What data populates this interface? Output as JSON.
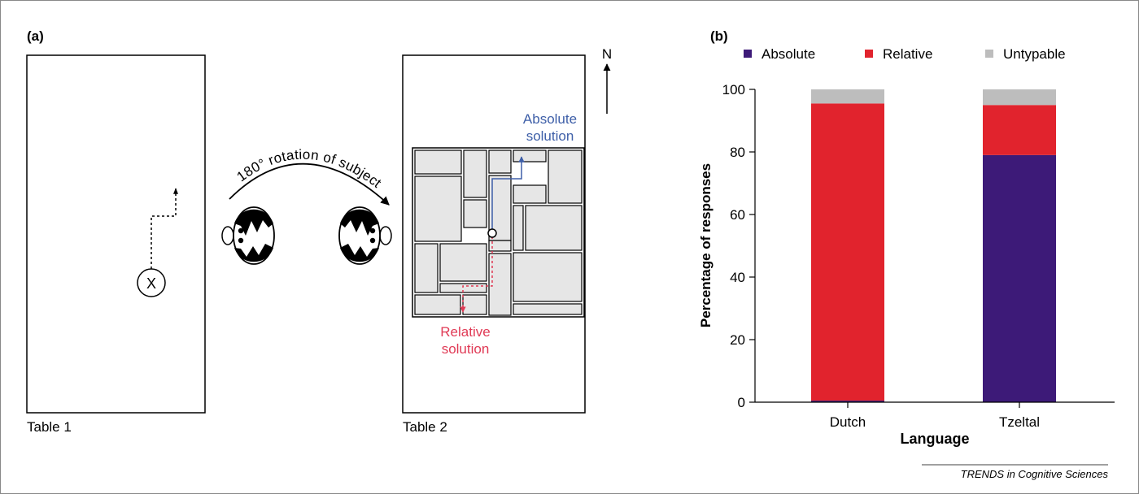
{
  "panel_a": {
    "label": "(a)",
    "table1_label": "Table 1",
    "table2_label": "Table 2",
    "rotation_text": "180° rotation of subject",
    "north": "N",
    "absolute_line1": "Absolute",
    "absolute_line2": "solution",
    "relative_line1": "Relative",
    "relative_line2": "solution",
    "start_marker": "X"
  },
  "panel_b": {
    "label": "(b)"
  },
  "credit": "TRENDS in Cognitive Sciences",
  "colors": {
    "absolute": "#3d1a78",
    "relative": "#e1232d",
    "untypable": "#bdbdbd",
    "absolute_text": "#3e5fa8",
    "relative_text": "#e03a55",
    "maze_block": "#e6e6e6",
    "ink": "#000000"
  },
  "chart_data": {
    "type": "bar",
    "stacked": true,
    "categories": [
      "Dutch",
      "Tzeltal"
    ],
    "series": [
      {
        "name": "Absolute",
        "color": "#3d1a78",
        "values": [
          0.5,
          79
        ]
      },
      {
        "name": "Relative",
        "color": "#e1232d",
        "values": [
          95,
          16
        ]
      },
      {
        "name": "Untypable",
        "color": "#bdbdbd",
        "values": [
          4.5,
          5
        ]
      }
    ],
    "xlabel": "Language",
    "ylabel": "Percentage of responses",
    "ylim": [
      0,
      100
    ],
    "yticks": [
      0,
      20,
      40,
      60,
      80,
      100
    ],
    "legend_position": "top",
    "grid": false
  }
}
